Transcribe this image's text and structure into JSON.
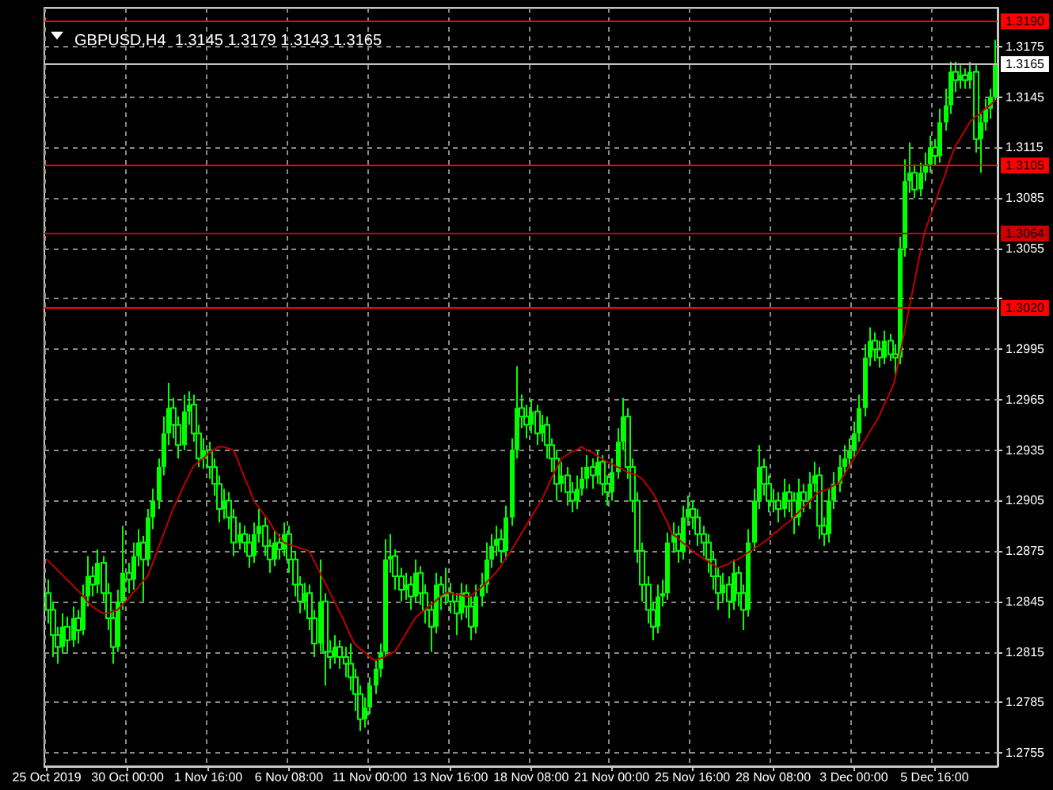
{
  "chart_data": {
    "type": "candlestick",
    "title": "GBPUSD,H4  1.3145 1.3179 1.3143 1.3165",
    "categories": [
      "25 Oct 2019",
      null,
      null,
      null,
      null,
      null,
      null,
      null,
      null,
      null,
      null,
      null,
      null,
      null,
      null,
      null,
      "30 Oct 00:00",
      null,
      null,
      null,
      null,
      null,
      null,
      null,
      null,
      null,
      null,
      null,
      null,
      null,
      null,
      null,
      "1 Nov 16:00",
      null,
      null,
      null,
      null,
      null,
      null,
      null,
      null,
      null,
      null,
      null,
      null,
      null,
      null,
      null,
      "6 Nov 08:00",
      null,
      null,
      null,
      null,
      null,
      null,
      null,
      null,
      null,
      null,
      null,
      null,
      null,
      null,
      null,
      "11 Nov 00:00",
      null,
      null,
      null,
      null,
      null,
      null,
      null,
      null,
      null,
      null,
      null,
      null,
      null,
      null,
      null,
      "13 Nov 16:00",
      null,
      null,
      null,
      null,
      null,
      null,
      null,
      null,
      null,
      null,
      null,
      null,
      null,
      null,
      null,
      "18 Nov 08:00",
      null,
      null,
      null,
      null,
      null,
      null,
      null,
      null,
      null,
      null,
      null,
      null,
      null,
      null,
      null,
      "21 Nov 00:00",
      null,
      null,
      null,
      null,
      null,
      null,
      null,
      null,
      null,
      null,
      null,
      null,
      null,
      null,
      null,
      "25 Nov 16:00",
      null,
      null,
      null,
      null,
      null,
      null,
      null,
      null,
      null,
      null,
      null,
      null,
      null,
      null,
      null,
      "28 Nov 08:00",
      null,
      null,
      null,
      null,
      null,
      null,
      null,
      null,
      null,
      null,
      null,
      null,
      null,
      null,
      null,
      "3 Dec 00:00",
      null,
      null,
      null,
      null,
      null,
      null,
      null,
      null,
      null,
      null,
      null,
      null,
      null,
      null,
      null,
      "5 Dec 16:00",
      null,
      null,
      null,
      null,
      null,
      null,
      null,
      null,
      null,
      null,
      null,
      null
    ],
    "ylim": [
      1.2747,
      1.3198
    ],
    "yticks": [
      1.2755,
      1.2785,
      1.2815,
      1.2845,
      1.2875,
      1.2905,
      1.2935,
      1.2965,
      1.2995,
      {
        "value": 1.3025,
        "label": null
      },
      1.3055,
      1.3085,
      1.3115,
      1.3145,
      1.3175
    ],
    "grid": true,
    "series": [
      {
        "type": "candlestick",
        "color": "#00ff00",
        "ohlc": [
          [
            1.285,
            1.2858,
            1.2832,
            1.284
          ],
          [
            1.284,
            1.2845,
            1.2812,
            1.2825
          ],
          [
            1.2825,
            1.283,
            1.2808,
            1.2818
          ],
          [
            1.2818,
            1.2838,
            1.2814,
            1.283
          ],
          [
            1.283,
            1.2836,
            1.2815,
            1.2822
          ],
          [
            1.2822,
            1.2842,
            1.2818,
            1.2835
          ],
          [
            1.2835,
            1.284,
            1.282,
            1.2828
          ],
          [
            1.2828,
            1.2855,
            1.2825,
            1.2848
          ],
          [
            1.2848,
            1.2872,
            1.2842,
            1.286
          ],
          [
            1.286,
            1.2866,
            1.2848,
            1.2855
          ],
          [
            1.2855,
            1.2876,
            1.285,
            1.2868
          ],
          [
            1.2868,
            1.2872,
            1.2845,
            1.285
          ],
          [
            1.285,
            1.2856,
            1.2828,
            1.2835
          ],
          [
            1.2835,
            1.284,
            1.2808,
            1.2818
          ],
          [
            1.2818,
            1.2852,
            1.2815,
            1.2845
          ],
          [
            1.2845,
            1.289,
            1.284,
            1.2862
          ],
          [
            1.2862,
            1.2868,
            1.285,
            1.2858
          ],
          [
            1.2858,
            1.288,
            1.2852,
            1.2872
          ],
          [
            1.2872,
            1.2888,
            1.2866,
            1.288
          ],
          [
            1.288,
            1.2884,
            1.2845,
            1.287
          ],
          [
            1.287,
            1.29,
            1.2866,
            1.2895
          ],
          [
            1.2895,
            1.2912,
            1.2888,
            1.2905
          ],
          [
            1.2905,
            1.293,
            1.29,
            1.2925
          ],
          [
            1.2925,
            1.2955,
            1.292,
            1.2945
          ],
          [
            1.2945,
            1.2975,
            1.2938,
            1.296
          ],
          [
            1.296,
            1.2966,
            1.2942,
            1.295
          ],
          [
            1.295,
            1.2955,
            1.293,
            1.2938
          ],
          [
            1.2938,
            1.2968,
            1.2935,
            1.2958
          ],
          [
            1.2958,
            1.297,
            1.295,
            1.2962
          ],
          [
            1.2962,
            1.2968,
            1.294,
            1.2945
          ],
          [
            1.2945,
            1.295,
            1.2925,
            1.293
          ],
          [
            1.293,
            1.2942,
            1.2924,
            1.2935
          ],
          [
            1.2935,
            1.294,
            1.2918,
            1.2925
          ],
          [
            1.2925,
            1.293,
            1.2908,
            1.2915
          ],
          [
            1.2915,
            1.292,
            1.2892,
            1.29
          ],
          [
            1.29,
            1.2912,
            1.2894,
            1.2905
          ],
          [
            1.2905,
            1.291,
            1.2888,
            1.2895
          ],
          [
            1.2895,
            1.29,
            1.2872,
            1.288
          ],
          [
            1.288,
            1.2892,
            1.2876,
            1.2885
          ],
          [
            1.2885,
            1.289,
            1.2874,
            1.288
          ],
          [
            1.288,
            1.2885,
            1.2865,
            1.2872
          ],
          [
            1.2872,
            1.2892,
            1.2868,
            1.2885
          ],
          [
            1.2885,
            1.29,
            1.288,
            1.289
          ],
          [
            1.289,
            1.2895,
            1.2872,
            1.2878
          ],
          [
            1.2878,
            1.2882,
            1.2862,
            1.287
          ],
          [
            1.287,
            1.2887,
            1.2866,
            1.288
          ],
          [
            1.288,
            1.2885,
            1.287,
            1.2876
          ],
          [
            1.2876,
            1.2892,
            1.2872,
            1.2885
          ],
          [
            1.2885,
            1.289,
            1.2862,
            1.287
          ],
          [
            1.287,
            1.2875,
            1.2848,
            1.2855
          ],
          [
            1.2855,
            1.286,
            1.2838,
            1.2845
          ],
          [
            1.2845,
            1.2856,
            1.284,
            1.285
          ],
          [
            1.285,
            1.2855,
            1.2828,
            1.2835
          ],
          [
            1.2835,
            1.284,
            1.2812,
            1.282
          ],
          [
            1.282,
            1.287,
            1.2815,
            1.2845
          ],
          [
            1.2845,
            1.285,
            1.2795,
            1.2815
          ],
          [
            1.2815,
            1.2822,
            1.2805,
            1.2812
          ],
          [
            1.2812,
            1.2825,
            1.2808,
            1.2818
          ],
          [
            1.2818,
            1.2822,
            1.2805,
            1.2812
          ],
          [
            1.2812,
            1.2818,
            1.28,
            1.2808
          ],
          [
            1.2808,
            1.282,
            1.2792,
            1.28
          ],
          [
            1.28,
            1.2805,
            1.278,
            1.279
          ],
          [
            1.279,
            1.2795,
            1.2768,
            1.2775
          ],
          [
            1.2775,
            1.2788,
            1.277,
            1.2782
          ],
          [
            1.2782,
            1.28,
            1.2778,
            1.2795
          ],
          [
            1.2795,
            1.281,
            1.279,
            1.2805
          ],
          [
            1.2805,
            1.282,
            1.28,
            1.2815
          ],
          [
            1.2815,
            1.2882,
            1.2812,
            1.287
          ],
          [
            1.287,
            1.2885,
            1.2862,
            1.2872
          ],
          [
            1.2872,
            1.2876,
            1.2852,
            1.286
          ],
          [
            1.286,
            1.2865,
            1.2845,
            1.2852
          ],
          [
            1.2852,
            1.2862,
            1.2846,
            1.2855
          ],
          [
            1.2855,
            1.286,
            1.284,
            1.2848
          ],
          [
            1.2848,
            1.287,
            1.2844,
            1.2862
          ],
          [
            1.2862,
            1.2866,
            1.2843,
            1.285
          ],
          [
            1.285,
            1.2855,
            1.2832,
            1.284
          ],
          [
            1.284,
            1.2845,
            1.2815,
            1.283
          ],
          [
            1.283,
            1.2862,
            1.2826,
            1.2855
          ],
          [
            1.2855,
            1.286,
            1.284,
            1.2848
          ],
          [
            1.2848,
            1.2865,
            1.2843,
            1.285
          ],
          [
            1.285,
            1.2856,
            1.2838,
            1.2845
          ],
          [
            1.2845,
            1.285,
            1.2825,
            1.2838
          ],
          [
            1.2838,
            1.2856,
            1.2834,
            1.285
          ],
          [
            1.285,
            1.2855,
            1.2835,
            1.2842
          ],
          [
            1.2842,
            1.2848,
            1.2822,
            1.283
          ],
          [
            1.283,
            1.2855,
            1.2826,
            1.2848
          ],
          [
            1.2848,
            1.2862,
            1.2842,
            1.2855
          ],
          [
            1.2855,
            1.288,
            1.285,
            1.287
          ],
          [
            1.287,
            1.2885,
            1.2865,
            1.2878
          ],
          [
            1.2878,
            1.289,
            1.2872,
            1.2882
          ],
          [
            1.2882,
            1.2888,
            1.2868,
            1.2875
          ],
          [
            1.2875,
            1.2902,
            1.287,
            1.2895
          ],
          [
            1.2895,
            1.2942,
            1.289,
            1.2935
          ],
          [
            1.2935,
            1.2985,
            1.293,
            1.296
          ],
          [
            1.296,
            1.2968,
            1.2948,
            1.2955
          ],
          [
            1.2955,
            1.2962,
            1.2942,
            1.295
          ],
          [
            1.295,
            1.2965,
            1.2945,
            1.2958
          ],
          [
            1.2958,
            1.2962,
            1.2938,
            1.2945
          ],
          [
            1.2945,
            1.2956,
            1.294,
            1.295
          ],
          [
            1.295,
            1.2955,
            1.293,
            1.2938
          ],
          [
            1.2938,
            1.2942,
            1.2922,
            1.293
          ],
          [
            1.293,
            1.2935,
            1.2905,
            1.2915
          ],
          [
            1.2915,
            1.2928,
            1.291,
            1.292
          ],
          [
            1.292,
            1.2925,
            1.2902,
            1.291
          ],
          [
            1.291,
            1.2916,
            1.2898,
            1.2905
          ],
          [
            1.2905,
            1.292,
            1.29,
            1.2912
          ],
          [
            1.2912,
            1.2925,
            1.2908,
            1.2918
          ],
          [
            1.2918,
            1.2932,
            1.2912,
            1.2925
          ],
          [
            1.2925,
            1.293,
            1.2912,
            1.292
          ],
          [
            1.292,
            1.2935,
            1.2915,
            1.2928
          ],
          [
            1.2928,
            1.2932,
            1.2908,
            1.2915
          ],
          [
            1.2915,
            1.292,
            1.2902,
            1.291
          ],
          [
            1.291,
            1.293,
            1.2905,
            1.2922
          ],
          [
            1.2922,
            1.2948,
            1.2918,
            1.294
          ],
          [
            1.294,
            1.2966,
            1.2935,
            1.2955
          ],
          [
            1.2955,
            1.296,
            1.2918,
            1.2925
          ],
          [
            1.2925,
            1.293,
            1.2898,
            1.2905
          ],
          [
            1.2905,
            1.291,
            1.2868,
            1.2875
          ],
          [
            1.2875,
            1.288,
            1.2845,
            1.2855
          ],
          [
            1.2855,
            1.286,
            1.2832,
            1.284
          ],
          [
            1.284,
            1.2845,
            1.2822,
            1.283
          ],
          [
            1.283,
            1.2855,
            1.2826,
            1.2848
          ],
          [
            1.2848,
            1.2858,
            1.2842,
            1.285
          ],
          [
            1.285,
            1.2886,
            1.2846,
            1.288
          ],
          [
            1.288,
            1.2892,
            1.2874,
            1.2885
          ],
          [
            1.2885,
            1.289,
            1.2868,
            1.2875
          ],
          [
            1.2875,
            1.2902,
            1.287,
            1.2895
          ],
          [
            1.2895,
            1.2908,
            1.289,
            1.29
          ],
          [
            1.29,
            1.2905,
            1.2888,
            1.2895
          ],
          [
            1.2895,
            1.29,
            1.2878,
            1.2885
          ],
          [
            1.2885,
            1.289,
            1.2872,
            1.288
          ],
          [
            1.288,
            1.2885,
            1.2862,
            1.287
          ],
          [
            1.287,
            1.2875,
            1.2852,
            1.286
          ],
          [
            1.286,
            1.2865,
            1.284,
            1.285
          ],
          [
            1.285,
            1.2862,
            1.2845,
            1.2855
          ],
          [
            1.2855,
            1.286,
            1.2835,
            1.2845
          ],
          [
            1.2845,
            1.287,
            1.284,
            1.2862
          ],
          [
            1.2862,
            1.2866,
            1.2842,
            1.285
          ],
          [
            1.285,
            1.2855,
            1.2828,
            1.284
          ],
          [
            1.284,
            1.2888,
            1.2836,
            1.288
          ],
          [
            1.288,
            1.2912,
            1.2875,
            1.2905
          ],
          [
            1.2905,
            1.2938,
            1.29,
            1.2925
          ],
          [
            1.2925,
            1.293,
            1.2908,
            1.2915
          ],
          [
            1.2915,
            1.292,
            1.2898,
            1.2905
          ],
          [
            1.2905,
            1.2912,
            1.2898,
            1.2905
          ],
          [
            1.2905,
            1.291,
            1.2892,
            1.29
          ],
          [
            1.29,
            1.2918,
            1.2895,
            1.291
          ],
          [
            1.291,
            1.2915,
            1.2898,
            1.2905
          ],
          [
            1.2905,
            1.291,
            1.2885,
            1.2895
          ],
          [
            1.2895,
            1.2918,
            1.289,
            1.291
          ],
          [
            1.291,
            1.2915,
            1.2898,
            1.2905
          ],
          [
            1.2905,
            1.2922,
            1.29,
            1.2915
          ],
          [
            1.2915,
            1.2928,
            1.291,
            1.292
          ],
          [
            1.292,
            1.2925,
            1.2882,
            1.289
          ],
          [
            1.289,
            1.2895,
            1.2878,
            1.2885
          ],
          [
            1.2885,
            1.2912,
            1.288,
            1.2905
          ],
          [
            1.2905,
            1.2922,
            1.29,
            1.2915
          ],
          [
            1.2915,
            1.2932,
            1.291,
            1.2925
          ],
          [
            1.2925,
            1.2938,
            1.292,
            1.293
          ],
          [
            1.293,
            1.2942,
            1.2925,
            1.2935
          ],
          [
            1.2935,
            1.2952,
            1.293,
            1.2945
          ],
          [
            1.2945,
            1.2968,
            1.294,
            1.296
          ],
          [
            1.296,
            1.2998,
            1.2955,
            1.299
          ],
          [
            1.299,
            1.3008,
            1.2985,
            1.3
          ],
          [
            1.3,
            1.3005,
            1.2988,
            1.2995
          ],
          [
            1.2995,
            1.3,
            1.2984,
            1.299
          ],
          [
            1.299,
            1.3006,
            1.2986,
            1.3
          ],
          [
            1.3,
            1.3004,
            1.2988,
            1.2992
          ],
          [
            1.2992,
            1.2998,
            1.298,
            1.299
          ],
          [
            1.299,
            1.3062,
            1.2986,
            1.3055
          ],
          [
            1.3055,
            1.3108,
            1.305,
            1.3095
          ],
          [
            1.3095,
            1.3118,
            1.3088,
            1.31
          ],
          [
            1.31,
            1.3105,
            1.3085,
            1.309
          ],
          [
            1.309,
            1.3106,
            1.3086,
            1.31
          ],
          [
            1.31,
            1.3112,
            1.3095,
            1.3105
          ],
          [
            1.3105,
            1.3122,
            1.31,
            1.3115
          ],
          [
            1.3115,
            1.312,
            1.3104,
            1.311
          ],
          [
            1.311,
            1.3138,
            1.3106,
            1.313
          ],
          [
            1.313,
            1.315,
            1.3125,
            1.314
          ],
          [
            1.314,
            1.3166,
            1.3135,
            1.316
          ],
          [
            1.316,
            1.3166,
            1.3148,
            1.3155
          ],
          [
            1.3155,
            1.3164,
            1.315,
            1.3158
          ],
          [
            1.3158,
            1.3162,
            1.315,
            1.3155
          ],
          [
            1.3155,
            1.3166,
            1.315,
            1.316
          ],
          [
            1.316,
            1.3164,
            1.3112,
            1.312
          ],
          [
            1.312,
            1.3135,
            1.31,
            1.313
          ],
          [
            1.313,
            1.3144,
            1.3125,
            1.3138
          ],
          [
            1.3138,
            1.315,
            1.3132,
            1.3145
          ],
          [
            1.3145,
            1.3179,
            1.3143,
            1.3165
          ]
        ]
      },
      {
        "type": "line",
        "color": "#c00000",
        "marker": "none",
        "values": [
          1.287,
          1.2867,
          1.2864,
          1.2861,
          1.2858,
          1.2855,
          1.2852,
          1.2849,
          1.2845,
          1.2842,
          1.284,
          1.2838,
          1.2838,
          1.2839,
          1.284,
          1.2843,
          1.2846,
          1.285,
          1.2853,
          1.2857,
          1.286,
          1.2868,
          1.2876,
          1.2884,
          1.2892,
          1.29,
          1.2906,
          1.2913,
          1.2919,
          1.2925,
          1.2928,
          1.293,
          1.2933,
          1.2935,
          1.2937,
          1.2937,
          1.2936,
          1.2935,
          1.2928,
          1.292,
          1.2913,
          1.2905,
          1.2901,
          1.2897,
          1.2893,
          1.2888,
          1.2884,
          1.288,
          1.2879,
          1.2878,
          1.2877,
          1.2876,
          1.2875,
          1.2869,
          1.2863,
          1.2857,
          1.2851,
          1.2845,
          1.2839,
          1.2833,
          1.2826,
          1.282,
          1.2817,
          1.2815,
          1.2812,
          1.281,
          1.2811,
          1.2812,
          1.2814,
          1.2815,
          1.282,
          1.2825,
          1.283,
          1.2835,
          1.2838,
          1.284,
          1.2843,
          1.2845,
          1.2848,
          1.285,
          1.285,
          1.2849,
          1.2849,
          1.2848,
          1.2848,
          1.2851,
          1.2853,
          1.2856,
          1.2859,
          1.2862,
          1.2866,
          1.2871,
          1.2875,
          1.288,
          1.2885,
          1.289,
          1.2895,
          1.29,
          1.2905,
          1.2911,
          1.2918,
          1.2924,
          1.293,
          1.2932,
          1.2934,
          1.2935,
          1.2937,
          1.2935,
          1.2934,
          1.2932,
          1.293,
          1.2928,
          1.2927,
          1.2925,
          1.2924,
          1.2922,
          1.2921,
          1.292,
          1.2918,
          1.2914,
          1.291,
          1.2905,
          1.2898,
          1.2892,
          1.2885,
          1.2883,
          1.288,
          1.2878,
          1.2875,
          1.2873,
          1.2871,
          1.2869,
          1.2867,
          1.2865,
          1.2866,
          1.2867,
          1.2869,
          1.287,
          1.2872,
          1.2874,
          1.2876,
          1.2878,
          1.288,
          1.2882,
          1.2885,
          1.2887,
          1.289,
          1.2892,
          1.2895,
          1.2898,
          1.2901,
          1.2904,
          1.2907,
          1.291,
          1.2911,
          1.2912,
          1.2914,
          1.2915,
          1.292,
          1.2925,
          1.293,
          1.2935,
          1.294,
          1.2945,
          1.295,
          1.2955,
          1.2962,
          1.2968,
          1.2975,
          1.299,
          1.3005,
          1.302,
          1.3035,
          1.305,
          1.3064,
          1.3073,
          1.3081,
          1.309,
          1.3098,
          1.3107,
          1.3115,
          1.312,
          1.3125,
          1.313,
          1.3133,
          1.3135,
          1.3138,
          1.314,
          1.3143
        ]
      }
    ],
    "ref_lines": [
      {
        "axis": "y",
        "value": 1.319,
        "label": "1.3190",
        "color": "#ff0000"
      },
      {
        "axis": "y",
        "value": 1.3165,
        "label": "1.3165",
        "color": "#c0c0c0"
      },
      {
        "axis": "y",
        "value": 1.3105,
        "label": "1.3105",
        "color": "#ff0000"
      },
      {
        "axis": "y",
        "value": 1.3064,
        "label": "1.3064",
        "color": "#d00000"
      },
      {
        "axis": "y",
        "value": 1.302,
        "label": "1.3020",
        "color": "#ff0000"
      }
    ]
  }
}
